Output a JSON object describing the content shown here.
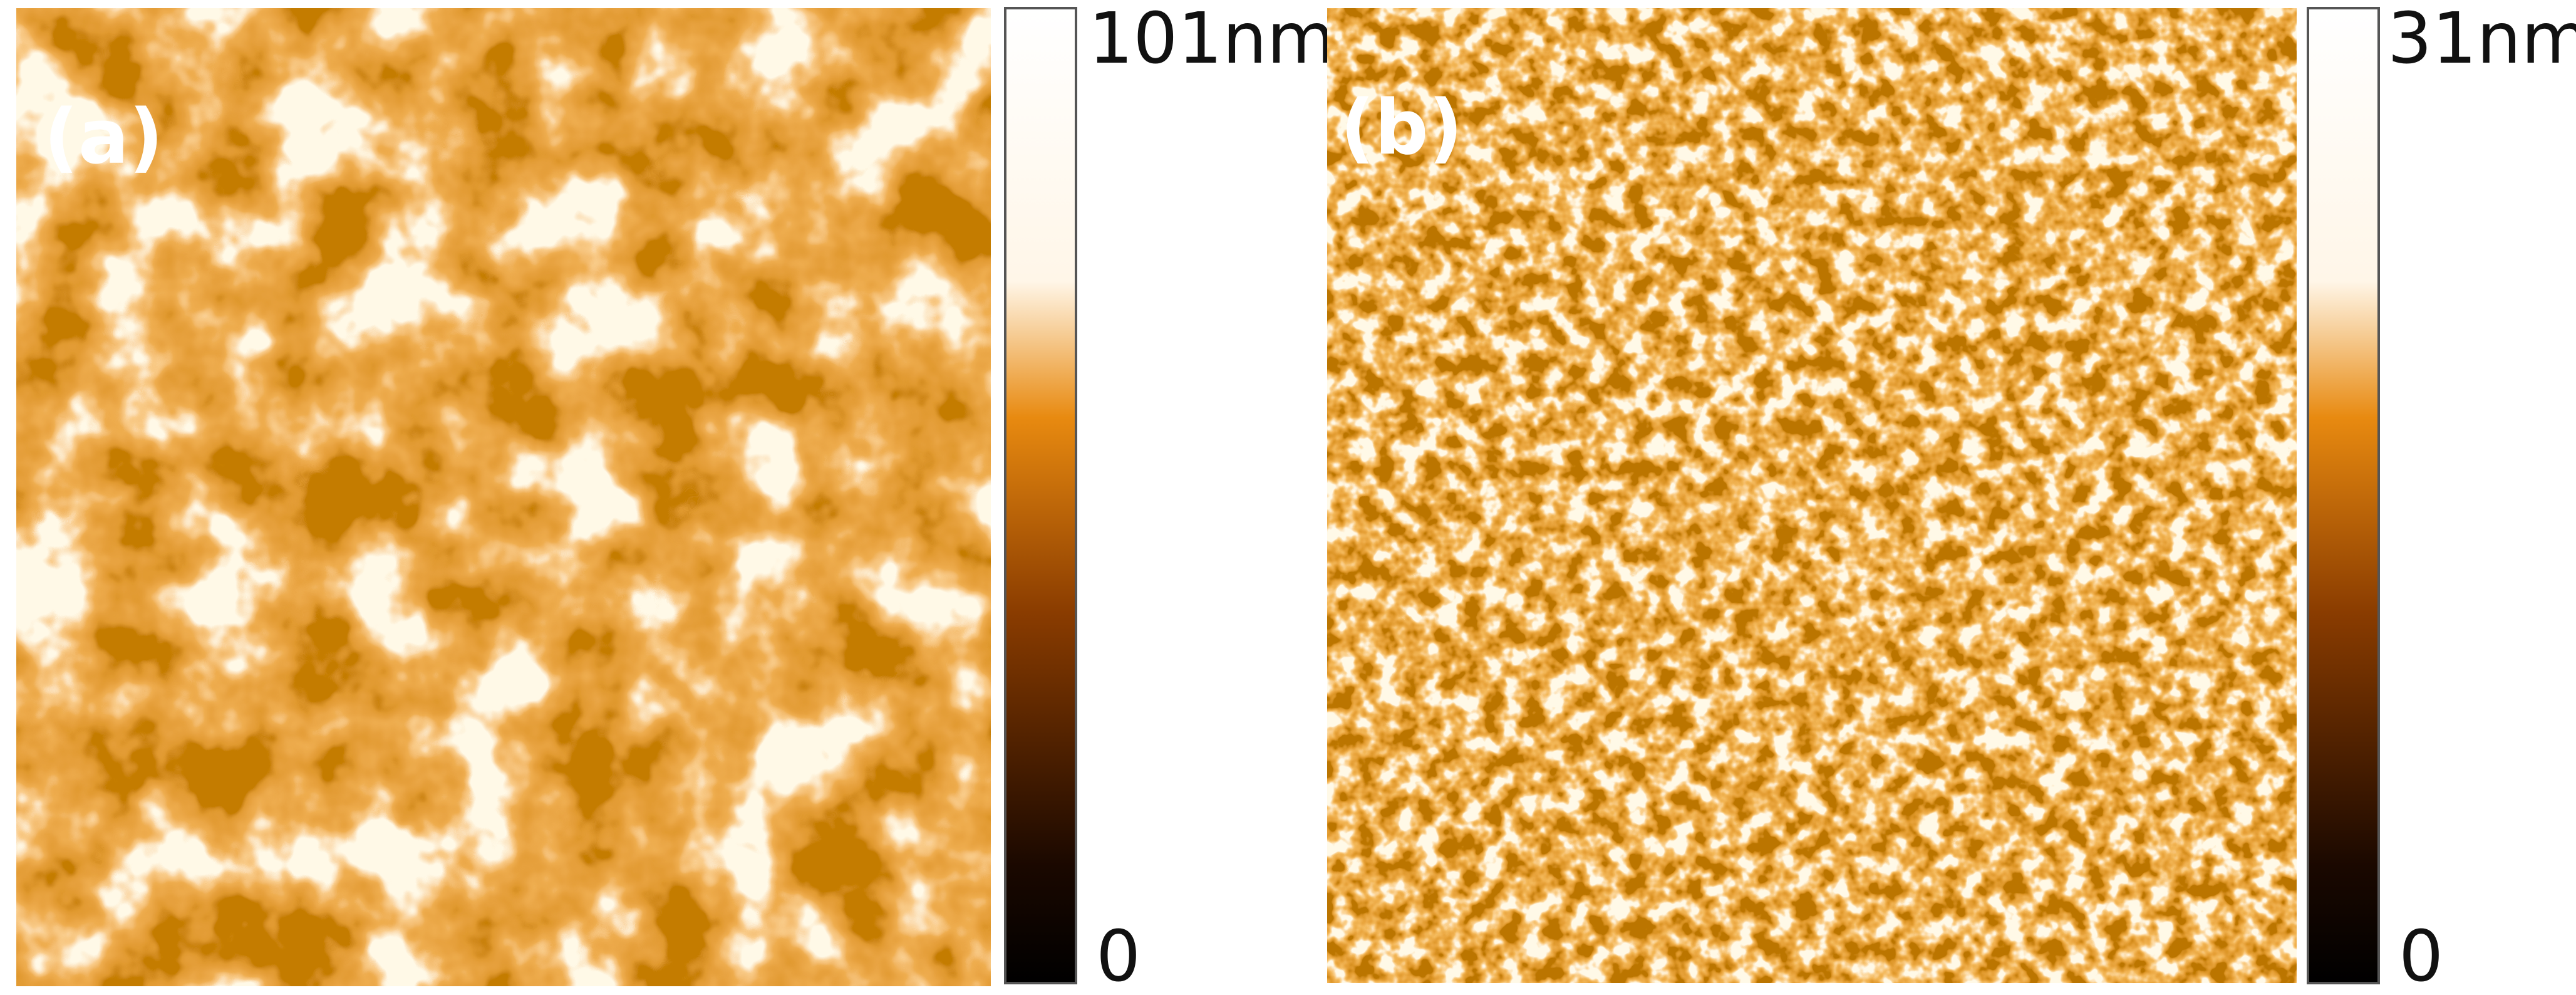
{
  "panels": [
    {
      "label": "(a)",
      "scale_max": "101nm",
      "scale_min": "0"
    },
    {
      "label": "(b)",
      "scale_max": "31nm",
      "scale_min": "0"
    }
  ]
}
